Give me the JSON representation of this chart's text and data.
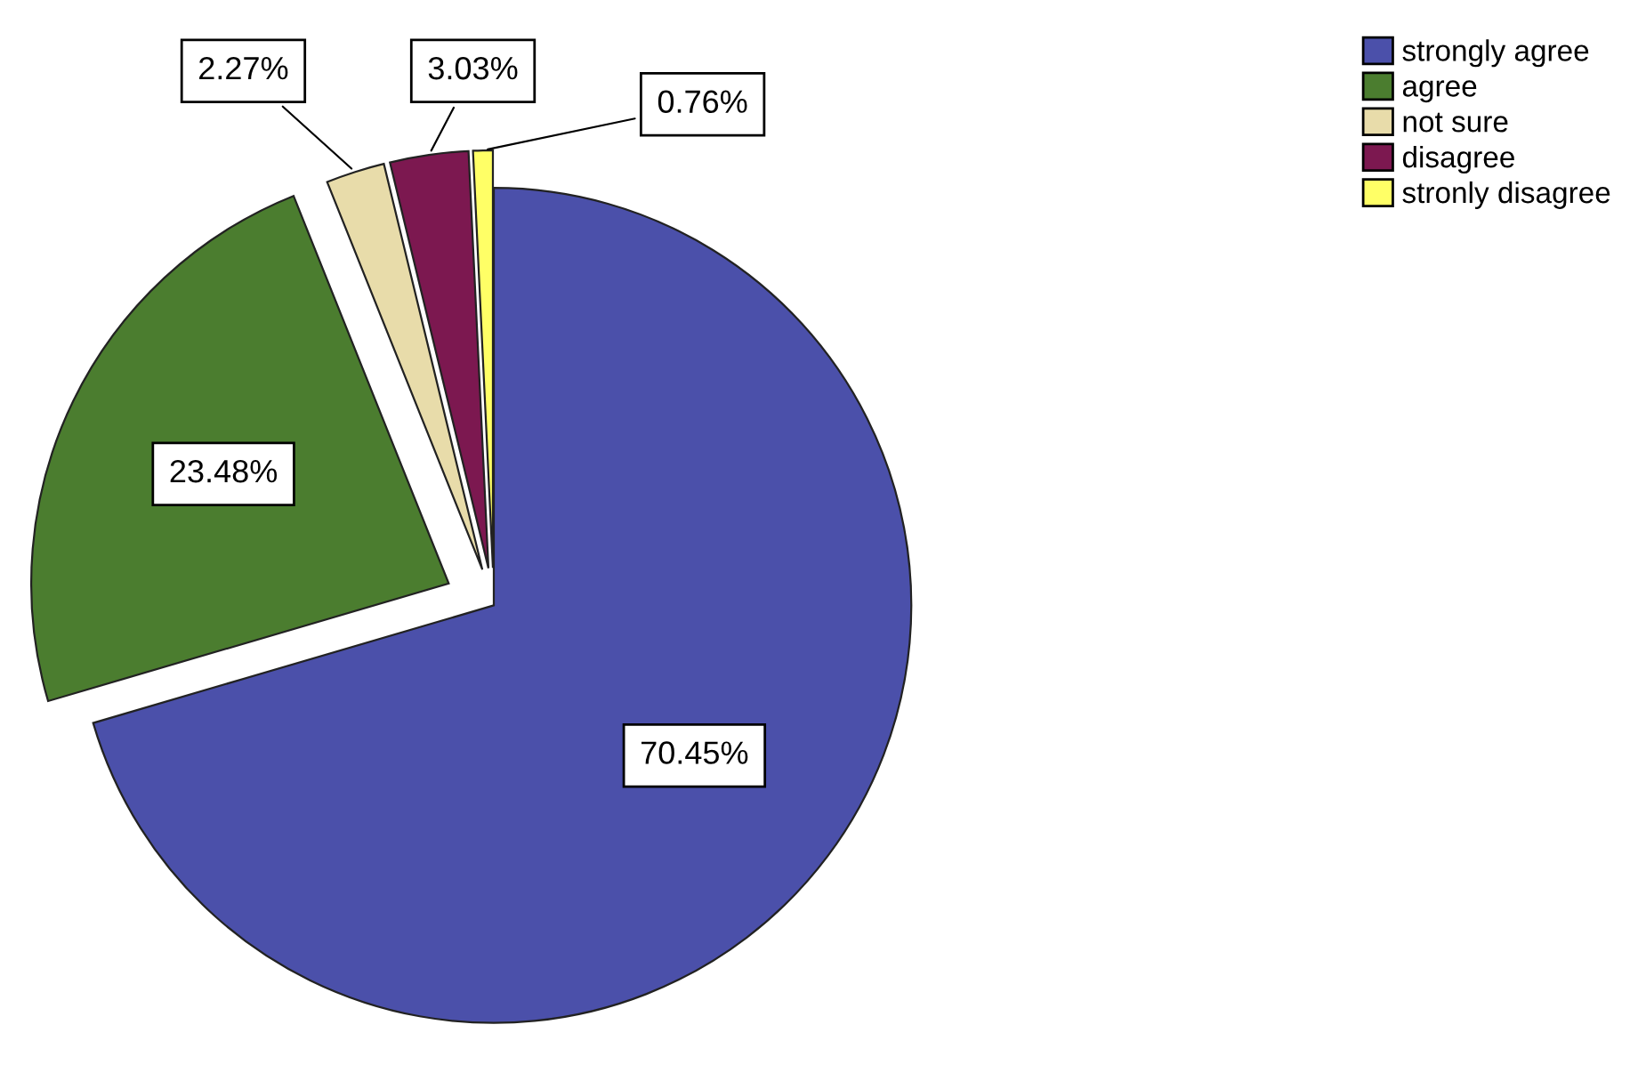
{
  "chart_data": {
    "type": "pie",
    "categories": [
      "strongly agree",
      "agree",
      "not sure",
      "disagree",
      "stronly disagree"
    ],
    "values": [
      70.45,
      23.48,
      2.27,
      3.03,
      0.76
    ],
    "colors": [
      "#4b50aa",
      "#4b7d2f",
      "#e8dcaa",
      "#7c1850",
      "#ffff66"
    ],
    "value_labels": [
      "70.45%",
      "23.48%",
      "2.27%",
      "3.03%",
      "0.76%"
    ],
    "legend": "top right"
  }
}
